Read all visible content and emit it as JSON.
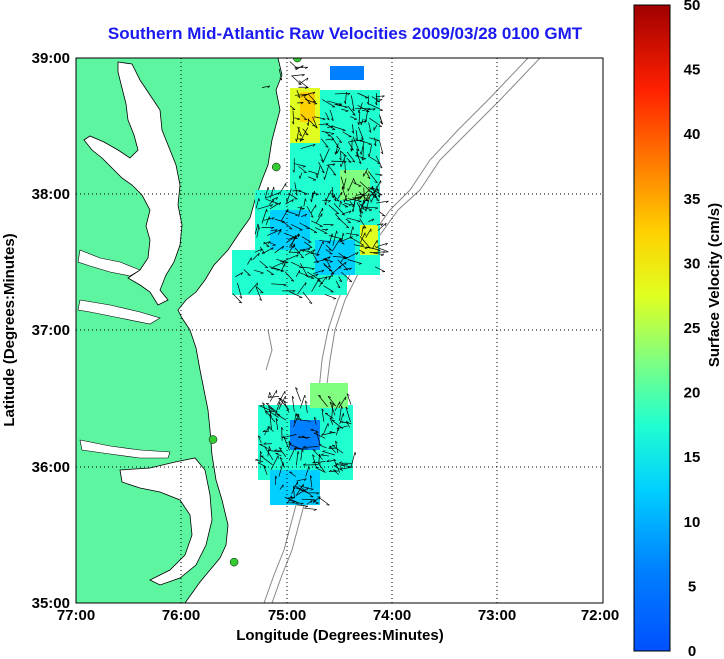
{
  "title": "Southern Mid-Atlantic Raw Velocities 2009/03/28 0100 GMT",
  "xlabel": "Longitude (Degrees:Minutes)",
  "ylabel": "Latitude (Degrees:Minutes)",
  "colorbar_label": "Surface Velocity (cm/s)",
  "x_ticks": [
    "77:00",
    "76:00",
    "75:00",
    "74:00",
    "73:00",
    "72:00"
  ],
  "y_ticks": [
    "39:00",
    "38:00",
    "37:00",
    "36:00",
    "35:00"
  ],
  "colorbar_ticks": [
    "50",
    "45",
    "40",
    "35",
    "30",
    "25",
    "20",
    "15",
    "10",
    "5",
    "0"
  ],
  "colors": {
    "title": "#1a1af0",
    "land": "#5ef5a0",
    "coastline": "#000000",
    "bathymetry": "#888888",
    "station": "#33cc33"
  },
  "chart_data": {
    "type": "map-vector-field",
    "x_range_deg_w": [
      77,
      72
    ],
    "y_range_deg_n": [
      35,
      39
    ],
    "colorbar_range_cm_s": [
      0,
      50
    ],
    "grid": true,
    "colormap": "jet",
    "stations": [
      {
        "lon": 74.9,
        "lat": 39.0
      },
      {
        "lon": 75.1,
        "lat": 38.2
      },
      {
        "lon": 75.7,
        "lat": 36.2
      },
      {
        "lon": 75.5,
        "lat": 35.3
      }
    ]
  }
}
